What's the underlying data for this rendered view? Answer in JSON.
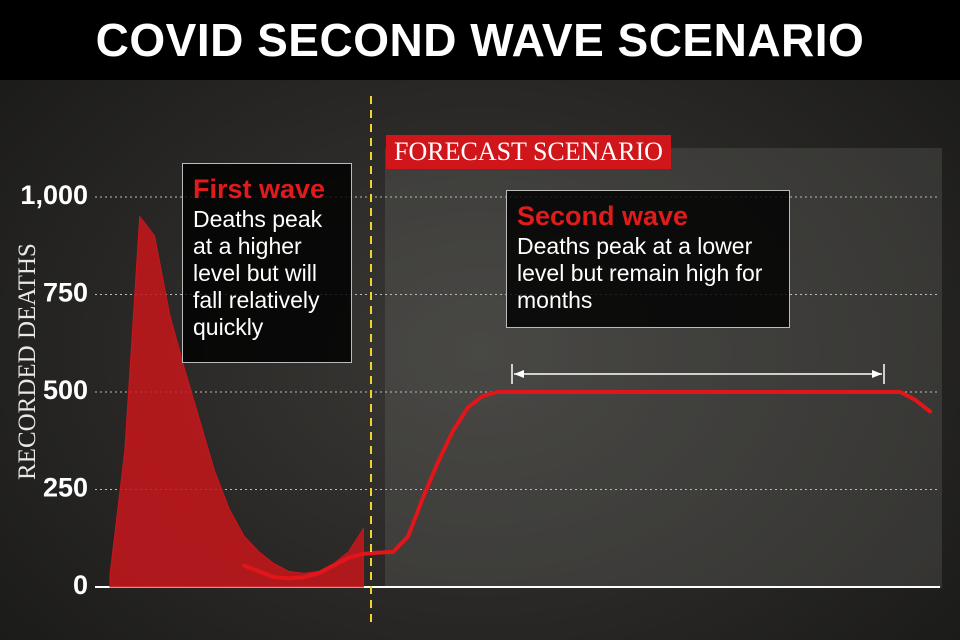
{
  "chart_data": {
    "type": "area-line",
    "title": "COVID SECOND WAVE SCENARIO",
    "y_label": "RECORDED DEATHS",
    "annotations": [
      "FORECAST SCENARIO",
      "First wave",
      "Deaths peak at a higher level but will fall relatively quickly",
      "Second wave",
      "Deaths peak at a lower level but remain high for months"
    ],
    "x": [
      0,
      3,
      6,
      9,
      12,
      15,
      18,
      21,
      24,
      27,
      30,
      33,
      36,
      39,
      42,
      45,
      48,
      51,
      54,
      57,
      60,
      63,
      66,
      69,
      72,
      75,
      78,
      81,
      84,
      87,
      90,
      93,
      96,
      99,
      102,
      105,
      108,
      111,
      114,
      117,
      120,
      123,
      126,
      129,
      132,
      135,
      138,
      141,
      144,
      147,
      150,
      153,
      156,
      159,
      162,
      165,
      168
    ],
    "xlim": [
      0,
      170
    ],
    "ylim": [
      0,
      1300
    ],
    "yticks": [
      0,
      250,
      500,
      750,
      {
        "value": 1000,
        "label": "1,000"
      }
    ],
    "grid": true,
    "series": [
      {
        "kind": "area",
        "color": "#c8161b",
        "values": [
          null,
          30,
          350,
          950,
          900,
          700,
          560,
          430,
          300,
          200,
          130,
          90,
          60,
          40,
          35,
          40,
          60,
          90,
          150,
          null,
          null,
          null,
          null,
          null,
          null,
          null,
          null,
          null,
          null,
          null,
          null,
          null,
          null,
          null,
          null,
          null,
          null,
          null,
          null,
          null,
          null,
          null,
          null,
          null,
          null,
          null,
          null,
          null,
          null,
          null,
          null,
          null,
          null,
          null,
          null,
          null,
          null
        ]
      },
      {
        "kind": "line",
        "color": "#e0161b",
        "values": [
          null,
          null,
          null,
          null,
          null,
          null,
          null,
          null,
          null,
          null,
          55,
          40,
          25,
          22,
          25,
          35,
          55,
          75,
          85,
          88,
          90,
          130,
          230,
          320,
          400,
          460,
          490,
          500,
          500,
          500,
          500,
          500,
          500,
          500,
          500,
          500,
          500,
          500,
          500,
          500,
          500,
          500,
          500,
          500,
          500,
          500,
          500,
          500,
          500,
          500,
          500,
          500,
          500,
          500,
          500,
          480,
          450
        ]
      }
    ]
  }
}
